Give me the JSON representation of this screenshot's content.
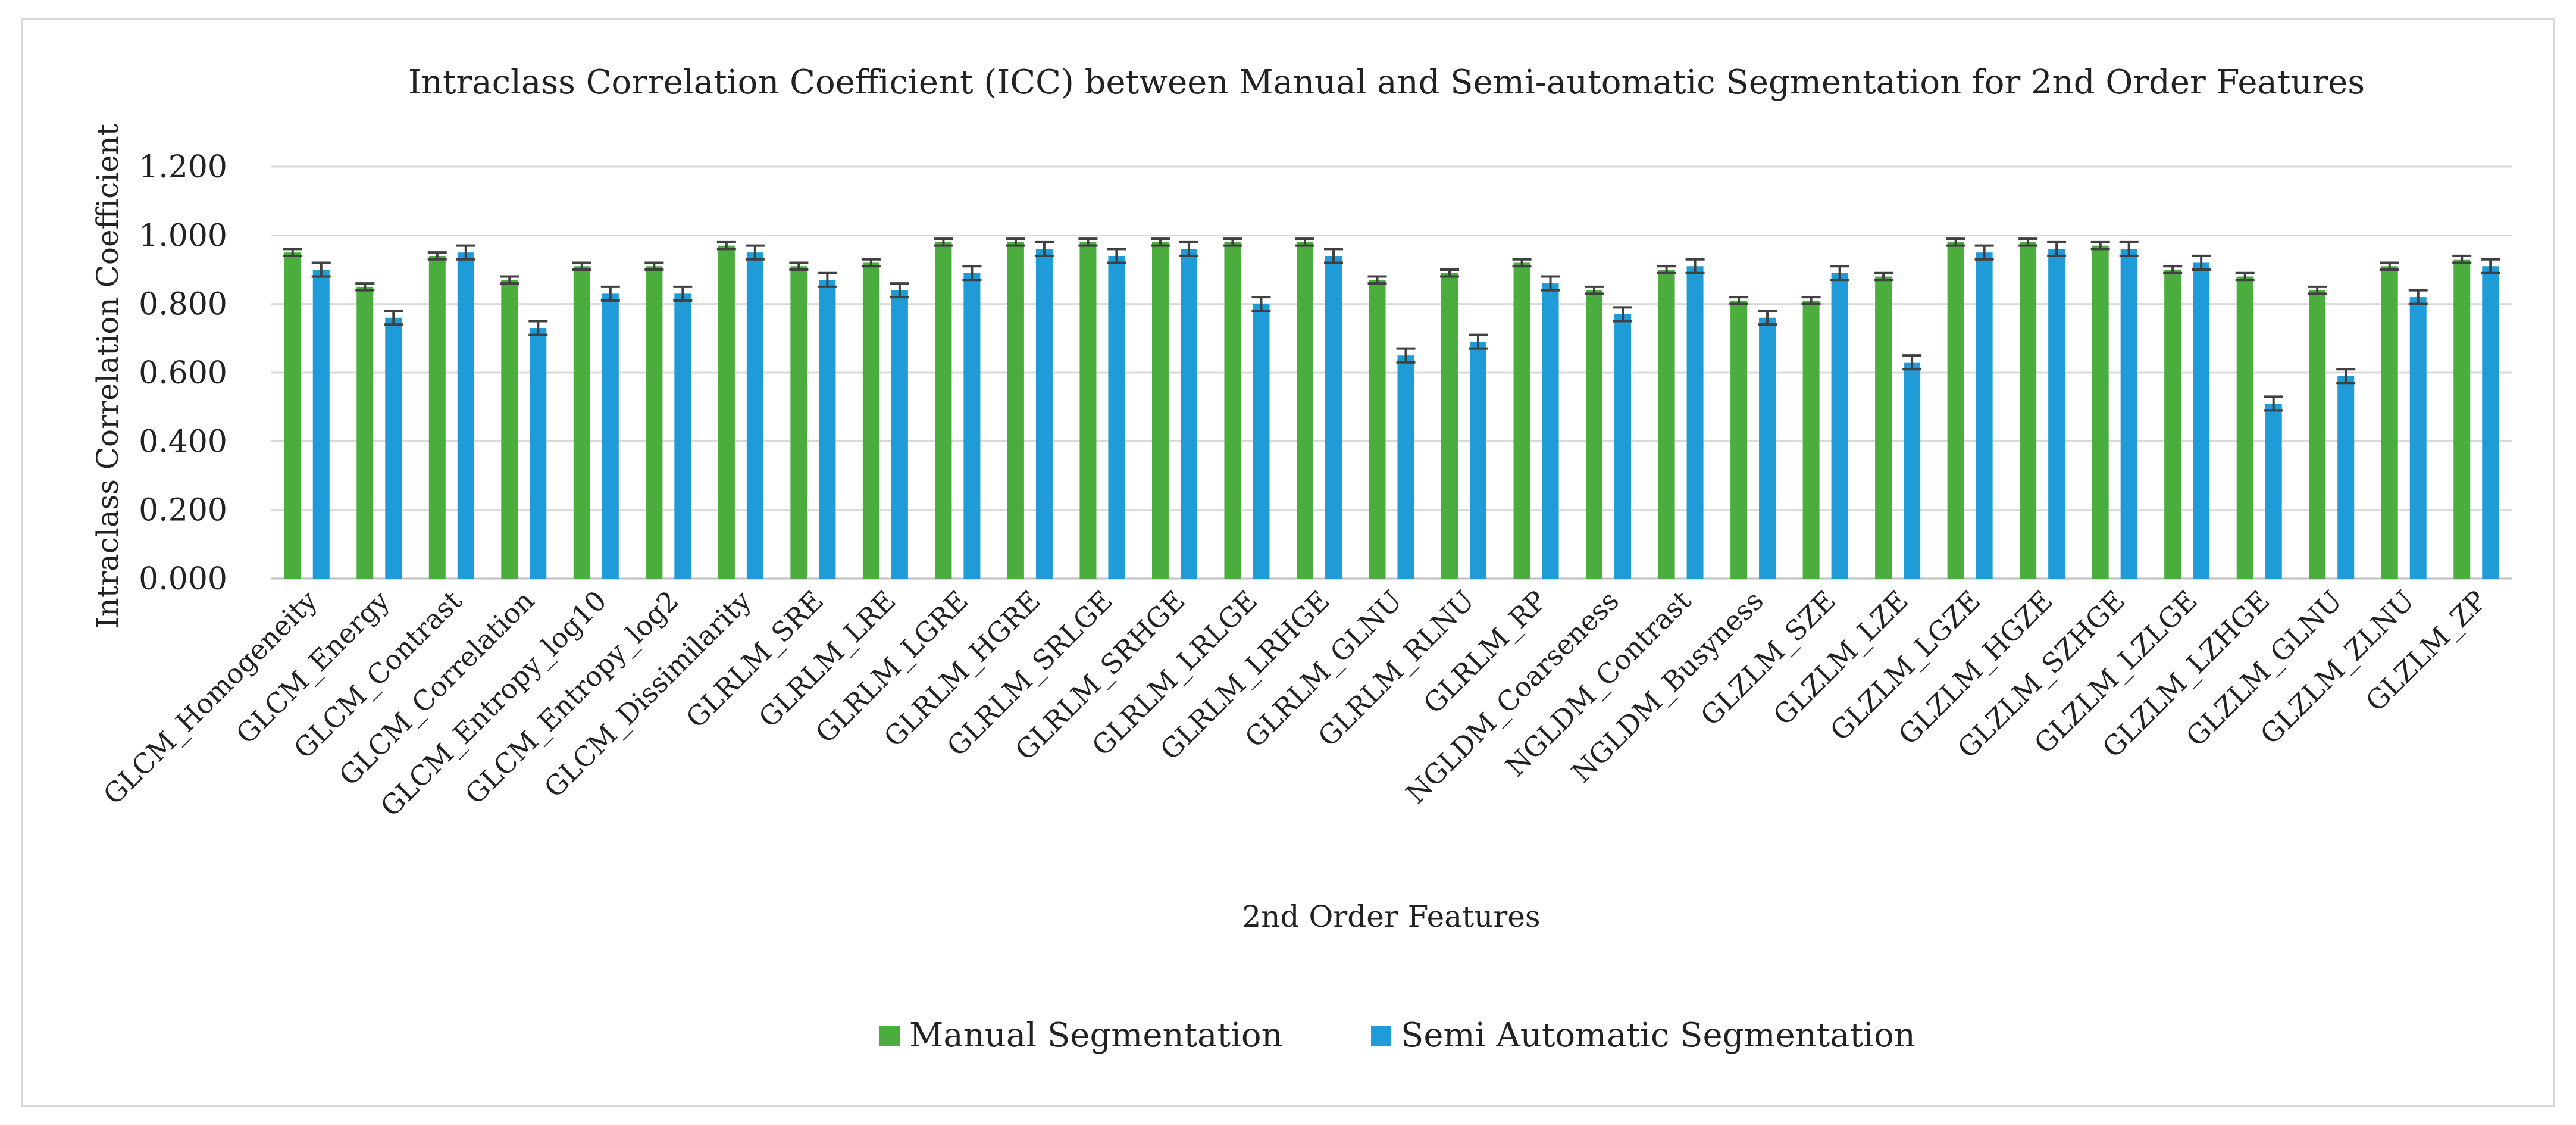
{
  "chart_data": {
    "type": "bar",
    "title": "Intraclass Correlation Coefficient (ICC) between Manual and Semi-automatic Segmentation for 2nd Order Features",
    "xlabel": "2nd Order Features",
    "ylabel": "Intraclass Correlation Coefficient",
    "ylim": [
      0,
      1.2
    ],
    "yticks": [
      "0.000",
      "0.200",
      "0.400",
      "0.600",
      "0.800",
      "1.000",
      "1.200"
    ],
    "grid": true,
    "legend_position": "bottom",
    "categories": [
      "GLCM_Homogeneity",
      "GLCM_Energy",
      "GLCM_Contrast",
      "GLCM_Correlation",
      "GLCM_Entropy_log10",
      "GLCM_Entropy_log2",
      "GLCM_Dissimilarity",
      "GLRLM_SRE",
      "GLRLM_LRE",
      "GLRLM_LGRE",
      "GLRLM_HGRE",
      "GLRLM_SRLGE",
      "GLRLM_SRHGE",
      "GLRLM_LRLGE",
      "GLRLM_LRHGE",
      "GLRLM_GLNU",
      "GLRLM_RLNU",
      "GLRLM_RP",
      "NGLDM_Coarseness",
      "NGLDM_Contrast",
      "NGLDM_Busyness",
      "GLZLM_SZE",
      "GLZLM_LZE",
      "GLZLM_LGZE",
      "GLZLM_HGZE",
      "GLZLM_SZHGE",
      "GLZLM_LZLGE",
      "GLZLM_LZHGE",
      "GLZLM_GLNU",
      "GLZLM_ZLNU",
      "GLZLM_ZP"
    ],
    "series": [
      {
        "name": "Manual Segmentation",
        "color": "#4aad3e",
        "values": [
          0.95,
          0.85,
          0.94,
          0.87,
          0.91,
          0.91,
          0.97,
          0.91,
          0.92,
          0.98,
          0.98,
          0.98,
          0.98,
          0.98,
          0.98,
          0.87,
          0.89,
          0.92,
          0.84,
          0.9,
          0.81,
          0.81,
          0.88,
          0.98,
          0.98,
          0.97,
          0.9,
          0.88,
          0.84,
          0.91,
          0.93
        ],
        "errors": [
          0.01,
          0.01,
          0.01,
          0.01,
          0.01,
          0.01,
          0.01,
          0.01,
          0.01,
          0.01,
          0.01,
          0.01,
          0.01,
          0.01,
          0.01,
          0.01,
          0.01,
          0.01,
          0.01,
          0.01,
          0.01,
          0.01,
          0.01,
          0.01,
          0.01,
          0.01,
          0.01,
          0.01,
          0.01,
          0.01,
          0.01
        ]
      },
      {
        "name": "Semi Automatic Segmentation",
        "color": "#1f9bd7",
        "values": [
          0.9,
          0.76,
          0.95,
          0.73,
          0.83,
          0.83,
          0.95,
          0.87,
          0.84,
          0.89,
          0.96,
          0.94,
          0.96,
          0.8,
          0.94,
          0.65,
          0.69,
          0.86,
          0.77,
          0.91,
          0.76,
          0.89,
          0.63,
          0.95,
          0.96,
          0.96,
          0.92,
          0.51,
          0.59,
          0.82,
          0.91
        ],
        "errors": [
          0.02,
          0.02,
          0.02,
          0.02,
          0.02,
          0.02,
          0.02,
          0.02,
          0.02,
          0.02,
          0.02,
          0.02,
          0.02,
          0.02,
          0.02,
          0.02,
          0.02,
          0.02,
          0.02,
          0.02,
          0.02,
          0.02,
          0.02,
          0.02,
          0.02,
          0.02,
          0.02,
          0.02,
          0.02,
          0.02,
          0.02
        ]
      }
    ]
  }
}
